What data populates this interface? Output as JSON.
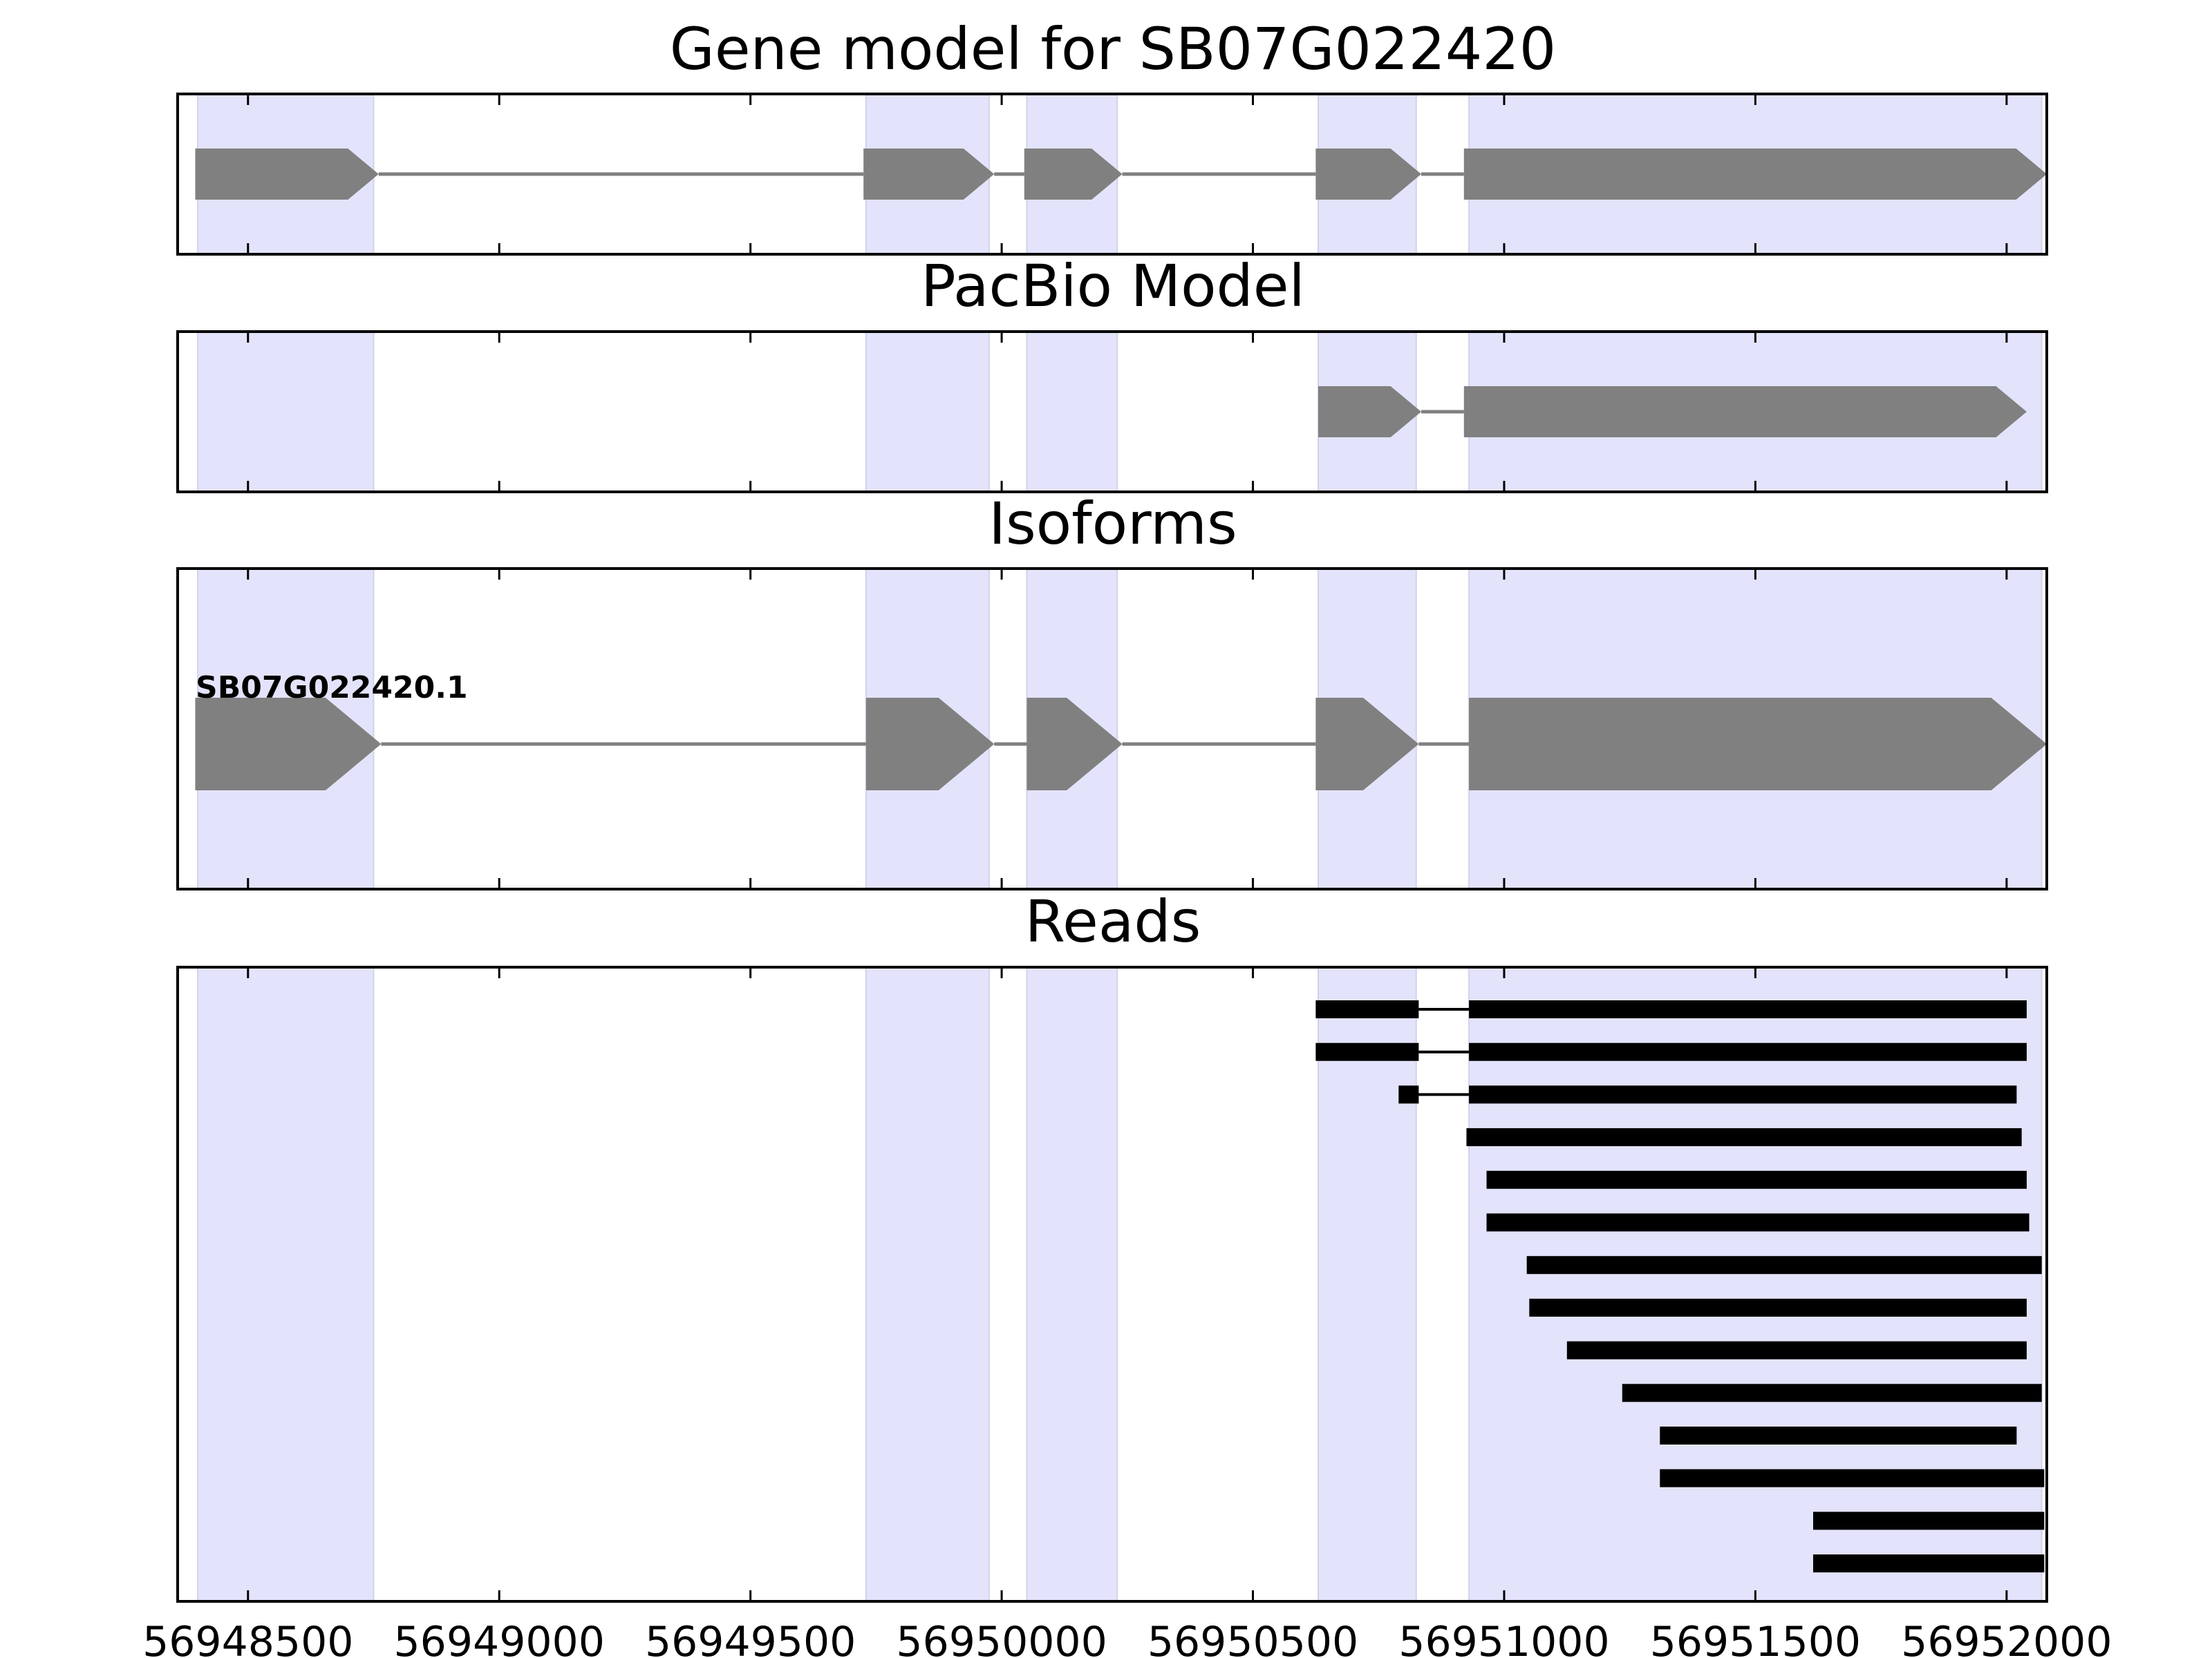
{
  "chart_data": {
    "type": "gene-model",
    "x_axis": {
      "range": [
        56948360,
        56952080
      ],
      "ticks": [
        56948500,
        56949000,
        56949500,
        56950000,
        56950500,
        56951000,
        56951500,
        56952000
      ],
      "tick_labels": [
        "56948500",
        "56949000",
        "56949500",
        "56950000",
        "56950500",
        "56951000",
        "56951500",
        "56952000"
      ]
    },
    "colors": {
      "exon_shade": "#e3e3fb",
      "exon_shade_edge": "#d2d2ec",
      "gene_feature": "#808080",
      "read": "#000000",
      "frame": "#000000"
    },
    "exon_regions": [
      [
        56948400,
        56948750
      ],
      [
        56949730,
        56949975
      ],
      [
        56950050,
        56950230
      ],
      [
        56950630,
        56950825
      ],
      [
        56950930,
        56952070
      ]
    ],
    "panels": [
      {
        "title": "Gene model for SB07G022420",
        "kind": "gene",
        "exons": [
          [
            56948395,
            56948760
          ],
          [
            56949725,
            56949985
          ],
          [
            56950045,
            56950240
          ],
          [
            56950625,
            56950835
          ],
          [
            56950920,
            56952080
          ]
        ]
      },
      {
        "title": "PacBio Model",
        "kind": "gene",
        "exons": [
          [
            56950630,
            56950835
          ],
          [
            56950920,
            56952040
          ]
        ]
      },
      {
        "title": "Isoforms",
        "kind": "isoform",
        "isoforms": [
          {
            "name": "SB07G022420.1",
            "exons": [
              [
                56948395,
                56948765
              ],
              [
                56949730,
                56949985
              ],
              [
                56950050,
                56950240
              ],
              [
                56950625,
                56950830
              ],
              [
                56950930,
                56952080
              ]
            ]
          }
        ]
      },
      {
        "title": "Reads",
        "kind": "reads",
        "reads": [
          [
            [
              56950625,
              56950830
            ],
            [
              56950930,
              56952040
            ]
          ],
          [
            [
              56950625,
              56950830
            ],
            [
              56950930,
              56952040
            ]
          ],
          [
            [
              56950790,
              56950830
            ],
            [
              56950930,
              56952020
            ]
          ],
          [
            [
              56950925,
              56952030
            ]
          ],
          [
            [
              56950965,
              56952040
            ]
          ],
          [
            [
              56950965,
              56952045
            ]
          ],
          [
            [
              56951045,
              56952070
            ]
          ],
          [
            [
              56951050,
              56952040
            ]
          ],
          [
            [
              56951125,
              56952040
            ]
          ],
          [
            [
              56951235,
              56952070
            ]
          ],
          [
            [
              56951310,
              56952020
            ]
          ],
          [
            [
              56951310,
              56952075
            ]
          ],
          [
            [
              56951615,
              56952075
            ]
          ],
          [
            [
              56951615,
              56952075
            ]
          ]
        ]
      }
    ]
  }
}
